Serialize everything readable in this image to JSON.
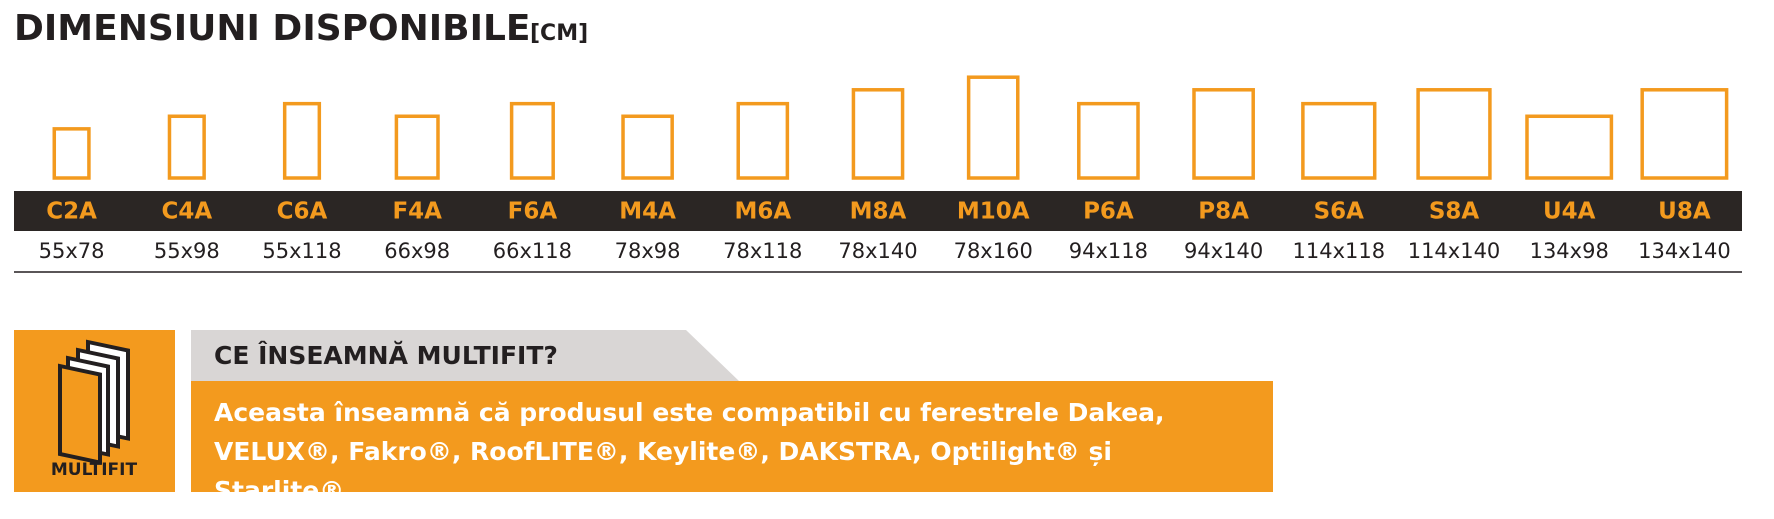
{
  "header": {
    "title": "DIMENSIUNI DISPONIBILE",
    "unit": "[CM]"
  },
  "sizes": [
    {
      "code": "C2A",
      "dims": "55x78"
    },
    {
      "code": "C4A",
      "dims": "55x98"
    },
    {
      "code": "C6A",
      "dims": "55x118"
    },
    {
      "code": "F4A",
      "dims": "66x98"
    },
    {
      "code": "F6A",
      "dims": "66x118"
    },
    {
      "code": "M4A",
      "dims": "78x98"
    },
    {
      "code": "M6A",
      "dims": "78x118"
    },
    {
      "code": "M8A",
      "dims": "78x140"
    },
    {
      "code": "M10A",
      "dims": "78x160"
    },
    {
      "code": "P6A",
      "dims": "94x118"
    },
    {
      "code": "P8A",
      "dims": "94x140"
    },
    {
      "code": "S6A",
      "dims": "114x118"
    },
    {
      "code": "S8A",
      "dims": "114x140"
    },
    {
      "code": "U4A",
      "dims": "134x98"
    },
    {
      "code": "U8A",
      "dims": "134x140"
    }
  ],
  "info": {
    "icon_label": "MULTIFIT",
    "question": "CE ÎNSEAMNĂ MULTIFIT?",
    "answer": "Aceasta înseamnă că produsul este compatibil cu ferestrele Dakea, VELUX®, Fakro®, RoofLITE®, Keylite®, DAKSTRA, Optilight® și Starlite®."
  }
}
